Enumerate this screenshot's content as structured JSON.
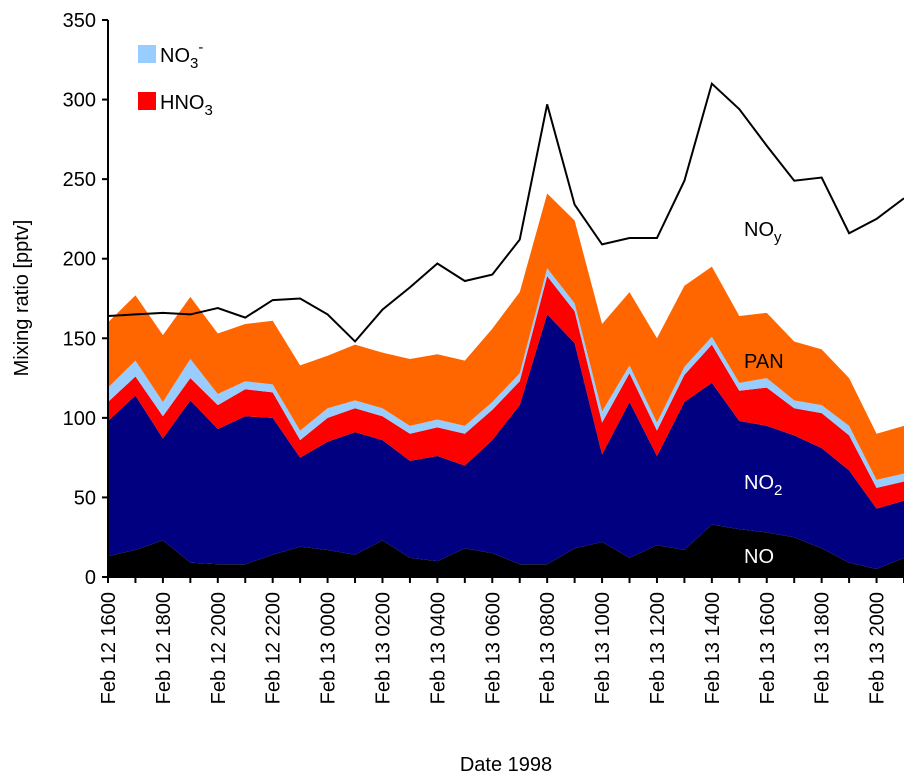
{
  "chart_data": {
    "type": "area",
    "subtype": "stacked",
    "xlabel": "Date 1998",
    "ylabel": "Mixing ratio [pptv]",
    "ylim": [
      0,
      350
    ],
    "yticks": [
      0,
      50,
      100,
      150,
      200,
      250,
      300,
      350
    ],
    "grid": false,
    "legend_position": "top-left",
    "x": [
      "Feb 12 1600",
      "Feb 12 1700",
      "Feb 12 1800",
      "Feb 12 1900",
      "Feb 12 2000",
      "Feb 12 2100",
      "Feb 12 2200",
      "Feb 12 2300",
      "Feb 13 0000",
      "Feb 13 0100",
      "Feb 13 0200",
      "Feb 13 0300",
      "Feb 13 0400",
      "Feb 13 0500",
      "Feb 13 0600",
      "Feb 13 0700",
      "Feb 13 0800",
      "Feb 13 0900",
      "Feb 13 1000",
      "Feb 13 1100",
      "Feb 13 1200",
      "Feb 13 1300",
      "Feb 13 1400",
      "Feb 13 1500",
      "Feb 13 1600",
      "Feb 13 1700",
      "Feb 13 1800",
      "Feb 13 1900",
      "Feb 13 2000",
      "Feb 13 2100"
    ],
    "tick_labels": [
      "Feb 12 1600",
      "Feb 12 1800",
      "Feb 12 2000",
      "Feb 12 2200",
      "Feb 13 0000",
      "Feb 13 0200",
      "Feb 13 0400",
      "Feb 13 0600",
      "Feb 13 0800",
      "Feb 13 1000",
      "Feb 13 1200",
      "Feb 13 1400",
      "Feb 13 1600",
      "Feb 13 1800",
      "Feb 13 2000"
    ],
    "series": [
      {
        "name": "NO",
        "color": "#000000",
        "values": [
          13,
          17,
          23,
          9,
          8,
          8,
          14,
          19,
          17,
          14,
          23,
          12,
          10,
          18,
          15,
          8,
          8,
          18,
          22,
          12,
          20,
          17,
          33,
          30,
          28,
          25,
          18,
          9,
          5,
          12
        ]
      },
      {
        "name": "NO2",
        "color": "#000080",
        "values": [
          85,
          97,
          64,
          102,
          85,
          93,
          86,
          56,
          68,
          77,
          63,
          61,
          66,
          52,
          71,
          100,
          157,
          129,
          55,
          98,
          56,
          93,
          89,
          68,
          67,
          64,
          63,
          58,
          38,
          36
        ]
      },
      {
        "name": "HNO3",
        "color": "#ff0000",
        "values": [
          12,
          12,
          14,
          14,
          15,
          17,
          16,
          11,
          15,
          15,
          15,
          17,
          18,
          20,
          19,
          15,
          24,
          20,
          20,
          18,
          16,
          17,
          24,
          19,
          24,
          17,
          22,
          22,
          13,
          12
        ]
      },
      {
        "name": "NO3-",
        "color": "#99ccff",
        "values": [
          9,
          10,
          9,
          12,
          7,
          5,
          5,
          6,
          6,
          5,
          5,
          5,
          5,
          5,
          5,
          5,
          5,
          5,
          7,
          5,
          5,
          5,
          5,
          5,
          6,
          5,
          5,
          6,
          5,
          5
        ]
      },
      {
        "name": "PAN",
        "color": "#ff6600",
        "values": [
          41,
          41,
          42,
          39,
          38,
          36,
          40,
          41,
          33,
          35,
          35,
          42,
          41,
          41,
          46,
          51,
          47,
          52,
          55,
          46,
          53,
          51,
          44,
          42,
          41,
          37,
          35,
          30,
          29,
          30
        ]
      }
    ],
    "noy": {
      "name": "NOy",
      "values": [
        164,
        165,
        166,
        165,
        169,
        163,
        174,
        175,
        165,
        148,
        168,
        182,
        197,
        186,
        190,
        212,
        297,
        234,
        209,
        213,
        213,
        249,
        310,
        294,
        271,
        249,
        251,
        216,
        225,
        238
      ]
    },
    "labels": {
      "NO": "NO",
      "NO2_main": "NO",
      "NO2_sub": "2",
      "PAN": "PAN",
      "NOy_main": "NO",
      "NOy_sub": "y"
    },
    "legend": [
      {
        "series": "NO3-",
        "main": "NO",
        "sub": "3",
        "sup": "-",
        "color": "#99ccff"
      },
      {
        "series": "HNO3",
        "main": "HNO",
        "sub": "3",
        "sup": "",
        "color": "#ff0000"
      }
    ]
  }
}
